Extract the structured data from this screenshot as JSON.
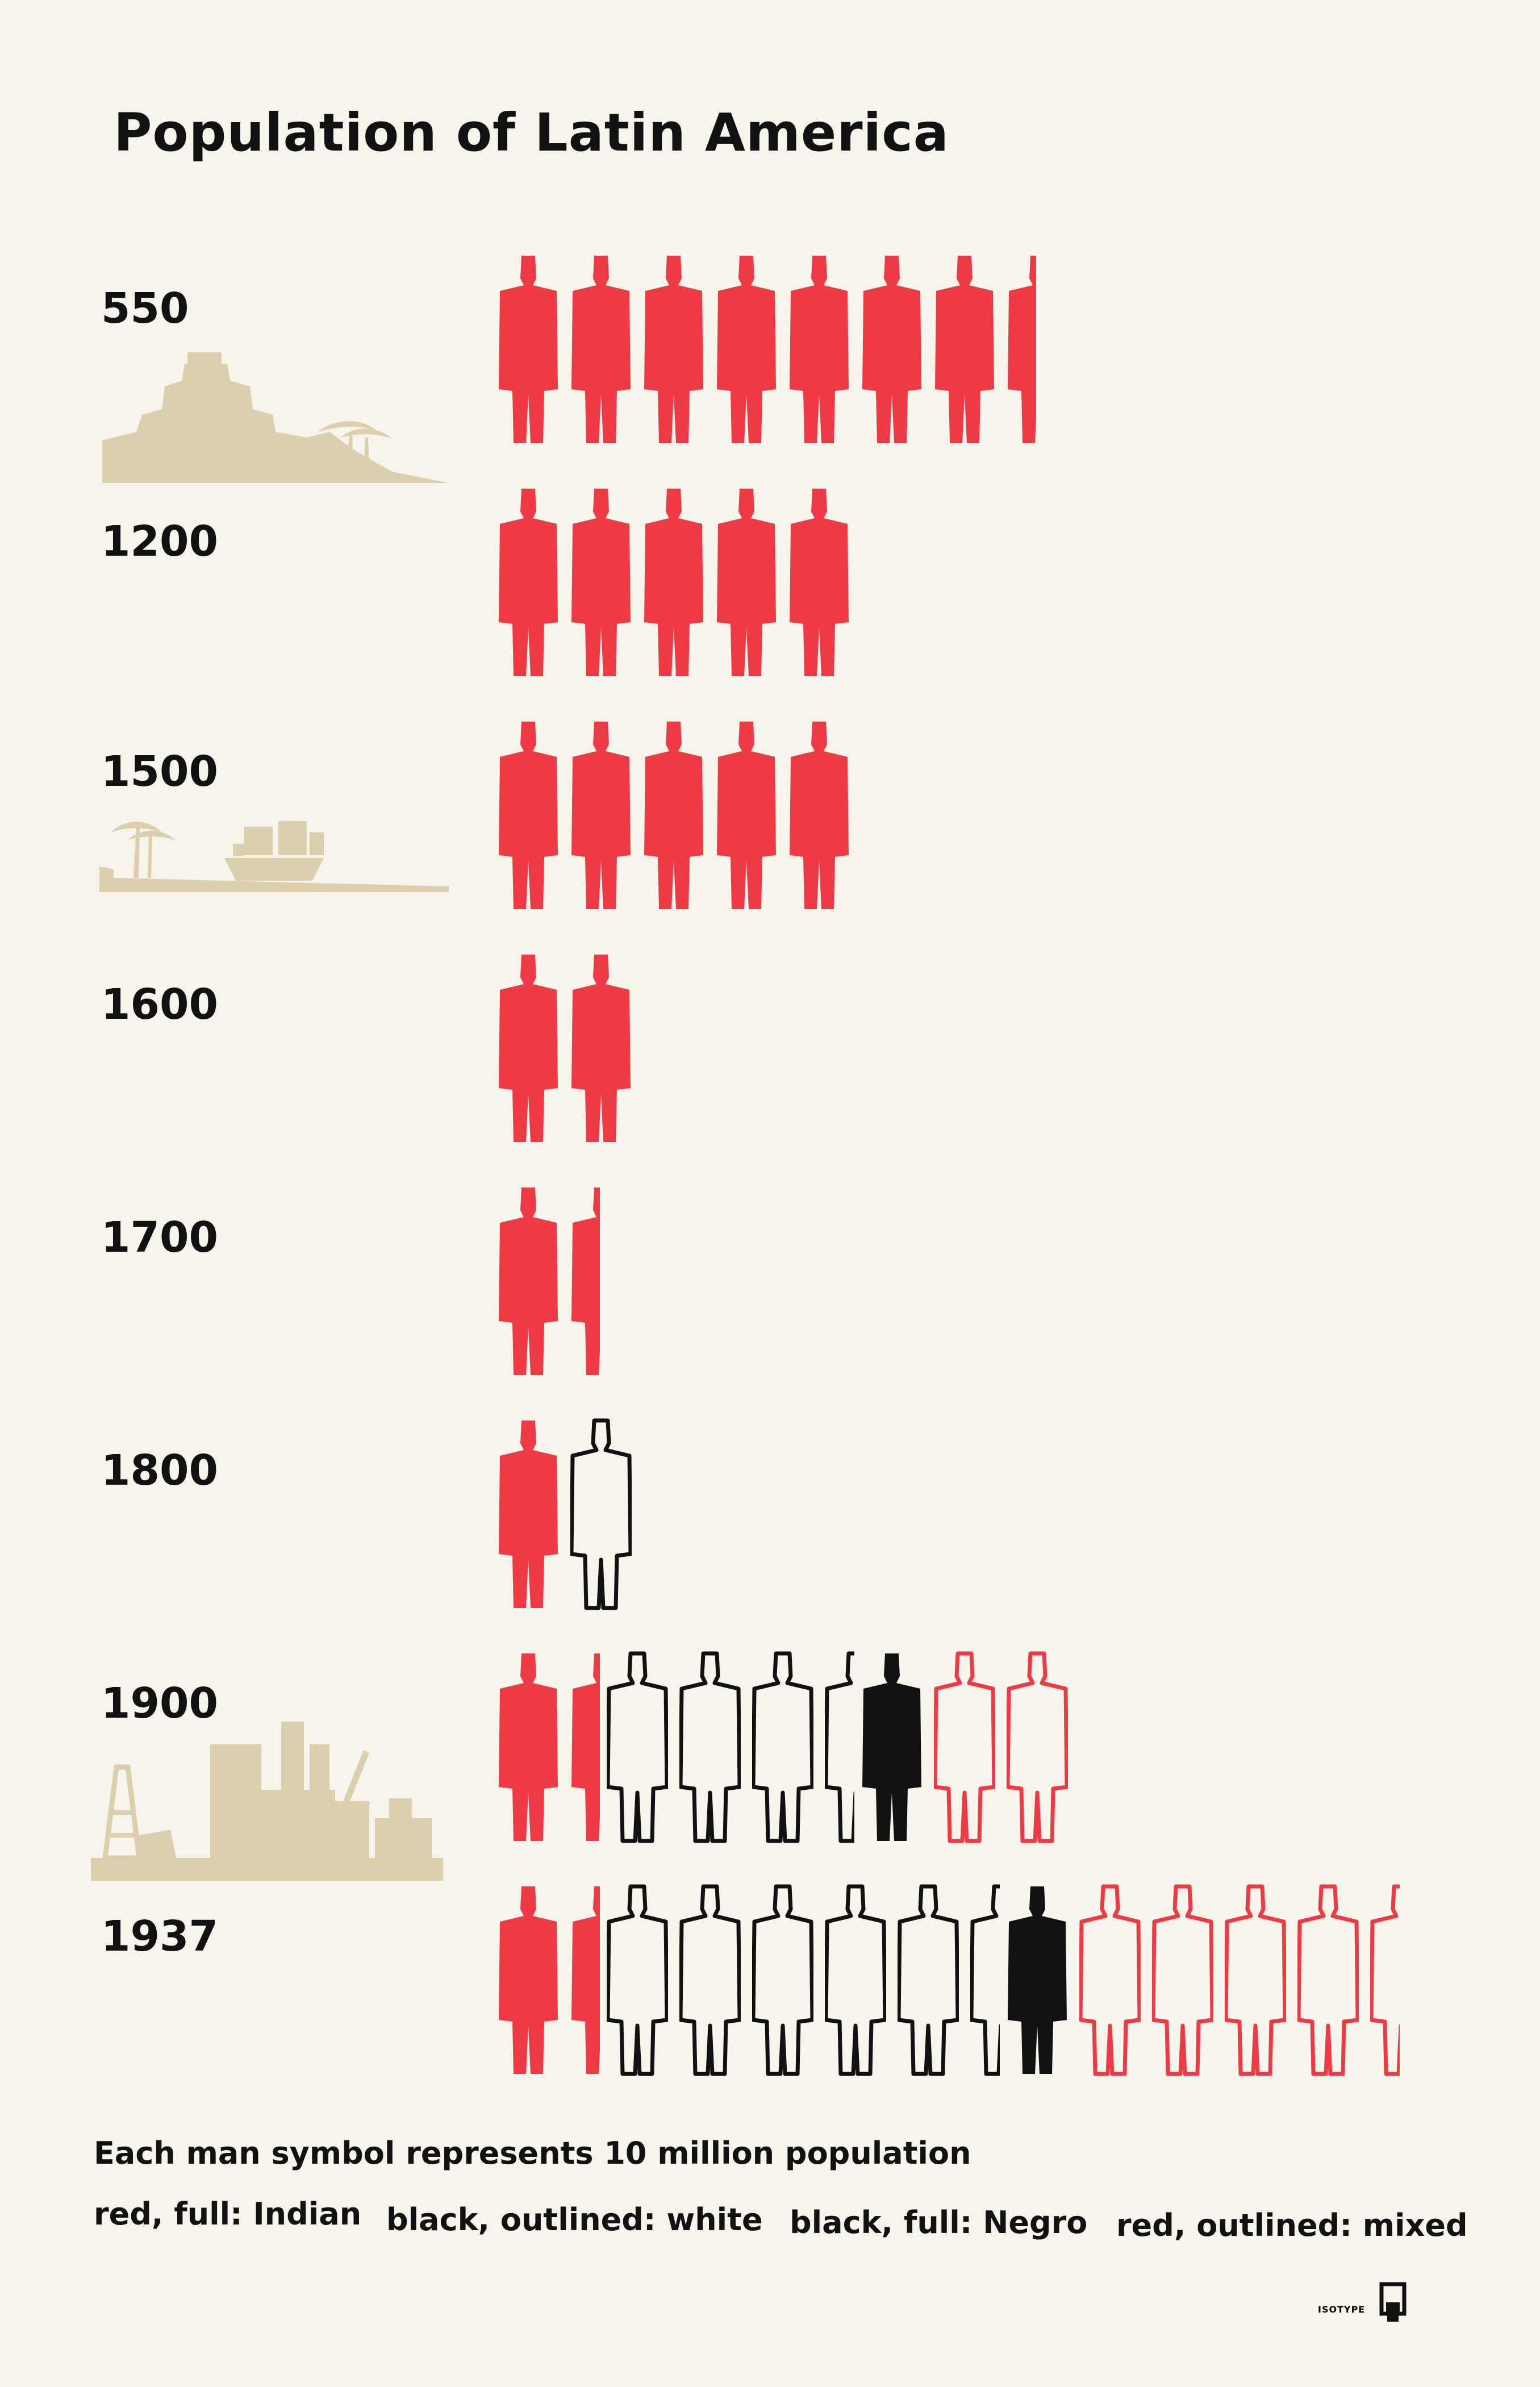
{
  "title": "Population of Latin America",
  "chart_data": {
    "type": "pictogram",
    "title": "Population of Latin America",
    "unit_label": "Each man symbol represents 10 million population",
    "unit_value": 10,
    "unit": "million",
    "categories": [
      "550",
      "1200",
      "1500",
      "1600",
      "1700",
      "1800",
      "1900",
      "1937"
    ],
    "series": [
      {
        "name": "Indian",
        "style": "red, full",
        "color": "#ee3a45",
        "values": [
          75,
          50,
          50,
          20,
          15,
          10,
          15,
          15
        ]
      },
      {
        "name": "white",
        "style": "black, outlined",
        "color": "#111111",
        "values": [
          0,
          0,
          0,
          0,
          0,
          10,
          35,
          55
        ]
      },
      {
        "name": "Negro",
        "style": "black, full",
        "color": "#111111",
        "values": [
          0,
          0,
          0,
          0,
          0,
          0,
          10,
          10
        ]
      },
      {
        "name": "mixed",
        "style": "red, outlined",
        "color": "#ee3a45",
        "values": [
          0,
          0,
          0,
          0,
          0,
          0,
          20,
          45
        ]
      }
    ]
  },
  "legend": {
    "indian": "red, full: Indian",
    "white": "black, outlined: white",
    "negro": "black, full: Negro",
    "mixed": "red, outlined: mixed"
  },
  "logo_text": "ISOTYPE",
  "colors": {
    "red": "#ee3a45",
    "black": "#111111",
    "beige": "#dccfae",
    "paper": "#f7f4ec"
  }
}
